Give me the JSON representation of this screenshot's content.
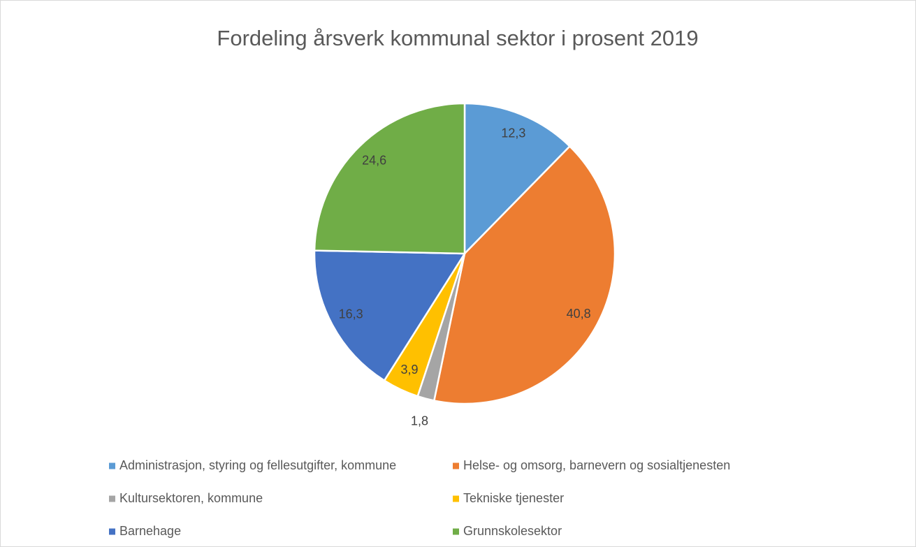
{
  "chart_data": {
    "type": "pie",
    "title": "Fordeling årsverk kommunal sektor i prosent 2019",
    "categories": [
      "Administrasjon, styring og fellesutgifter, kommune",
      "Helse- og omsorg, barnevern og sosialtjenesten",
      "Kultursektoren, kommune",
      "Tekniske tjenester",
      "Barnehage",
      "Grunnskolesektor"
    ],
    "values": [
      12.3,
      40.8,
      1.8,
      3.9,
      16.3,
      24.6
    ],
    "value_labels": [
      "12,3",
      "40,8",
      "1,8",
      "3,9",
      "16,3",
      "24,6"
    ],
    "colors": [
      "#5b9bd5",
      "#ed7d31",
      "#a5a5a5",
      "#ffc000",
      "#4472c4",
      "#70ad47"
    ],
    "legend": "bottom"
  }
}
